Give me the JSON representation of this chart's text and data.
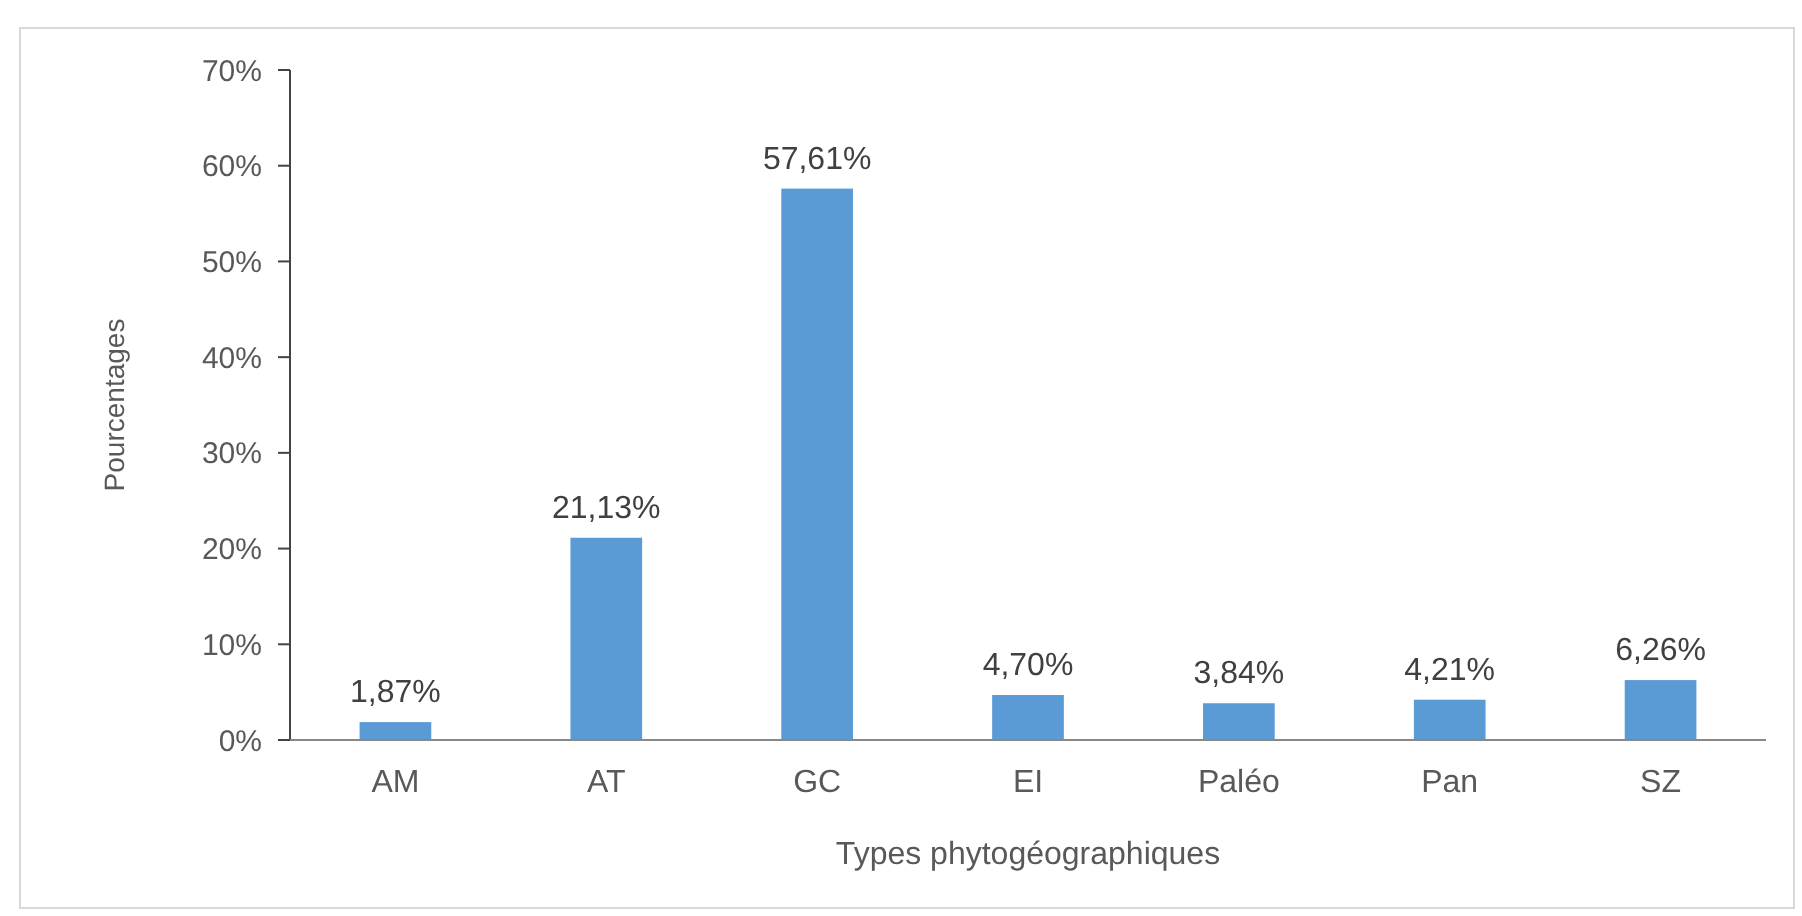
{
  "chart_data": {
    "type": "bar",
    "xlabel": "Types phytogéographiques",
    "ylabel": "Pourcentages",
    "categories": [
      "AM",
      "AT",
      "GC",
      "EI",
      "Paléo",
      "Pan",
      "SZ"
    ],
    "values": [
      1.87,
      21.13,
      57.61,
      4.7,
      3.84,
      4.21,
      6.26
    ],
    "value_labels": [
      "1,87%",
      "21,13%",
      "57,61%",
      "4,70%",
      "3,84%",
      "4,21%",
      "6,26%"
    ],
    "color": "#5b9bd5",
    "ylim": [
      0,
      70
    ],
    "yticks": [
      {
        "value": 0,
        "label": "0%"
      },
      {
        "value": 10,
        "label": "10%"
      },
      {
        "value": 20,
        "label": "20%"
      },
      {
        "value": 30,
        "label": "30%"
      },
      {
        "value": 40,
        "label": "40%"
      },
      {
        "value": 50,
        "label": "50%"
      },
      {
        "value": 60,
        "label": "60%"
      },
      {
        "value": 70,
        "label": "70%"
      }
    ],
    "grid": false
  }
}
